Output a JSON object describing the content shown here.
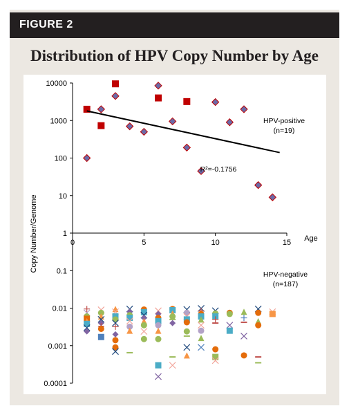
{
  "figure": {
    "label": "FIGURE 2",
    "title": "Distribution of HPV Copy Number by Age"
  },
  "colors": {
    "positive_marker": "#6b6ba8",
    "positive_square": "#c00000",
    "trendline": "#000000",
    "negative_palette": [
      "#e46c0a",
      "#4bacc6",
      "#8064a2",
      "#9bbb59",
      "#f79646",
      "#4f81bd",
      "#c0504d",
      "#1f497d",
      "#b3a2c7",
      "#f2a59a"
    ]
  },
  "chart_data": {
    "type": "scatter",
    "title": "",
    "xlabel": "Age",
    "ylabel": "Copy Number/Genome",
    "xlim": [
      0,
      15
    ],
    "ylim": [
      0.0001,
      10000
    ],
    "yscale": "log",
    "x_ticks": [
      "0",
      "5",
      "10",
      "15"
    ],
    "y_ticks": [
      "10000",
      "1000",
      "100",
      "10",
      "1",
      "0.1",
      "0.01",
      "0.001",
      "0.0001"
    ],
    "grid": false,
    "series": [
      {
        "name": "HPV-positive (n=19)",
        "label": "HPV-positive",
        "n_label": "(n=19)",
        "marker": "diamond",
        "points": [
          {
            "x": 1,
            "y": 100
          },
          {
            "x": 2,
            "y": 2000
          },
          {
            "x": 3,
            "y": 4500
          },
          {
            "x": 4,
            "y": 700
          },
          {
            "x": 5,
            "y": 500
          },
          {
            "x": 6,
            "y": 8500
          },
          {
            "x": 7,
            "y": 950
          },
          {
            "x": 8,
            "y": 190
          },
          {
            "x": 9,
            "y": 45
          },
          {
            "x": 10,
            "y": 3100
          },
          {
            "x": 11,
            "y": 900
          },
          {
            "x": 12,
            "y": 2000
          },
          {
            "x": 13,
            "y": 19
          },
          {
            "x": 14,
            "y": 9
          }
        ],
        "squares": [
          {
            "x": 1,
            "y": 2000
          },
          {
            "x": 2,
            "y": 730
          },
          {
            "x": 3,
            "y": 9500
          },
          {
            "x": 6,
            "y": 4000
          },
          {
            "x": 8,
            "y": 3200
          }
        ],
        "trendline": {
          "x0": 1,
          "y0": 1800,
          "x1": 14.5,
          "y1": 140
        },
        "r2_label": "R²=-0.1756"
      },
      {
        "name": "HPV-negative (n=187)",
        "label": "HPV-negative",
        "n_label": "(n=187)",
        "marker": "mixed",
        "points": [
          {
            "x": 1,
            "y": 0.0095,
            "m": "+",
            "c": 6
          },
          {
            "x": 1,
            "y": 0.0075,
            "m": "x",
            "c": 8
          },
          {
            "x": 1,
            "y": 0.006,
            "m": "o",
            "c": 3
          },
          {
            "x": 1,
            "y": 0.0052,
            "m": "s",
            "c": 0
          },
          {
            "x": 1,
            "y": 0.0045,
            "m": "^",
            "c": 4
          },
          {
            "x": 1,
            "y": 0.0038,
            "m": "s",
            "c": 1
          },
          {
            "x": 1,
            "y": 0.003,
            "m": "x",
            "c": 7
          },
          {
            "x": 1,
            "y": 0.0024,
            "m": "d",
            "c": 2
          },
          {
            "x": 2,
            "y": 0.009,
            "m": "x",
            "c": 9
          },
          {
            "x": 2,
            "y": 0.0075,
            "m": "o",
            "c": 3
          },
          {
            "x": 2,
            "y": 0.006,
            "m": "^",
            "c": 4
          },
          {
            "x": 2,
            "y": 0.005,
            "m": "x",
            "c": 7
          },
          {
            "x": 2,
            "y": 0.004,
            "m": "d",
            "c": 2
          },
          {
            "x": 2,
            "y": 0.0033,
            "m": "+",
            "c": 6
          },
          {
            "x": 2,
            "y": 0.0028,
            "m": "o",
            "c": 0
          },
          {
            "x": 2,
            "y": 0.0017,
            "m": "s",
            "c": 5
          },
          {
            "x": 3,
            "y": 0.0095,
            "m": "^",
            "c": 4
          },
          {
            "x": 3,
            "y": 0.008,
            "m": "x",
            "c": 9
          },
          {
            "x": 3,
            "y": 0.006,
            "m": "s",
            "c": 1
          },
          {
            "x": 3,
            "y": 0.005,
            "m": "o",
            "c": 3
          },
          {
            "x": 3,
            "y": 0.004,
            "m": "x",
            "c": 7
          },
          {
            "x": 3,
            "y": 0.0032,
            "m": "+",
            "c": 6
          },
          {
            "x": 3,
            "y": 0.002,
            "m": "d",
            "c": 2
          },
          {
            "x": 3,
            "y": 0.0014,
            "m": "o",
            "c": 0
          },
          {
            "x": 3,
            "y": 0.0009,
            "m": "o",
            "c": 0
          },
          {
            "x": 3,
            "y": 0.0007,
            "m": "x",
            "c": 7
          },
          {
            "x": 4,
            "y": 0.0095,
            "m": "x",
            "c": 7
          },
          {
            "x": 4,
            "y": 0.008,
            "m": "d",
            "c": 2
          },
          {
            "x": 4,
            "y": 0.0065,
            "m": "o",
            "c": 3
          },
          {
            "x": 4,
            "y": 0.0055,
            "m": "s",
            "c": 1
          },
          {
            "x": 4,
            "y": 0.0045,
            "m": "x",
            "c": 9
          },
          {
            "x": 4,
            "y": 0.0032,
            "m": "o",
            "c": 8
          },
          {
            "x": 4,
            "y": 0.0025,
            "m": "^",
            "c": 4
          },
          {
            "x": 4,
            "y": 0.00065,
            "m": "-",
            "c": 3
          },
          {
            "x": 5,
            "y": 0.0092,
            "m": "o",
            "c": 0
          },
          {
            "x": 5,
            "y": 0.0078,
            "m": "s",
            "c": 1
          },
          {
            "x": 5,
            "y": 0.0065,
            "m": "x",
            "c": 7
          },
          {
            "x": 5,
            "y": 0.0055,
            "m": "d",
            "c": 2
          },
          {
            "x": 5,
            "y": 0.0045,
            "m": "^",
            "c": 4
          },
          {
            "x": 5,
            "y": 0.0035,
            "m": "o",
            "c": 3
          },
          {
            "x": 5,
            "y": 0.0024,
            "m": "x",
            "c": 9
          },
          {
            "x": 5,
            "y": 0.0015,
            "m": "o",
            "c": 3
          },
          {
            "x": 6,
            "y": 0.0085,
            "m": "x",
            "c": 9
          },
          {
            "x": 6,
            "y": 0.007,
            "m": "d",
            "c": 2
          },
          {
            "x": 6,
            "y": 0.0055,
            "m": "o",
            "c": 0
          },
          {
            "x": 6,
            "y": 0.0045,
            "m": "s",
            "c": 1
          },
          {
            "x": 6,
            "y": 0.0035,
            "m": "o",
            "c": 8
          },
          {
            "x": 6,
            "y": 0.0025,
            "m": "^",
            "c": 4
          },
          {
            "x": 6,
            "y": 0.0015,
            "m": "o",
            "c": 3
          },
          {
            "x": 6,
            "y": 0.0003,
            "m": "s",
            "c": 1
          },
          {
            "x": 6,
            "y": 0.00015,
            "m": "x",
            "c": 2
          },
          {
            "x": 7,
            "y": 0.0095,
            "m": "o",
            "c": 0
          },
          {
            "x": 7,
            "y": 0.0088,
            "m": "s",
            "c": 1
          },
          {
            "x": 7,
            "y": 0.0072,
            "m": "^",
            "c": 4
          },
          {
            "x": 7,
            "y": 0.006,
            "m": "o",
            "c": 3
          },
          {
            "x": 7,
            "y": 0.005,
            "m": "-",
            "c": 3
          },
          {
            "x": 7,
            "y": 0.004,
            "m": "d",
            "c": 2
          },
          {
            "x": 7,
            "y": 0.0005,
            "m": "-",
            "c": 3
          },
          {
            "x": 7,
            "y": 0.0003,
            "m": "x",
            "c": 9
          },
          {
            "x": 8,
            "y": 0.0092,
            "m": "x",
            "c": 7
          },
          {
            "x": 8,
            "y": 0.0075,
            "m": "o",
            "c": 8
          },
          {
            "x": 8,
            "y": 0.006,
            "m": "x",
            "c": 9
          },
          {
            "x": 8,
            "y": 0.005,
            "m": "s",
            "c": 1
          },
          {
            "x": 8,
            "y": 0.0042,
            "m": "o",
            "c": 0
          },
          {
            "x": 8,
            "y": 0.0024,
            "m": "o",
            "c": 3
          },
          {
            "x": 8,
            "y": 0.0018,
            "m": "-",
            "c": 3
          },
          {
            "x": 8,
            "y": 0.0009,
            "m": "x",
            "c": 7
          },
          {
            "x": 8,
            "y": 0.00055,
            "m": "^",
            "c": 4
          },
          {
            "x": 9,
            "y": 0.0098,
            "m": "x",
            "c": 7
          },
          {
            "x": 9,
            "y": 0.0085,
            "m": "+",
            "c": 6
          },
          {
            "x": 9,
            "y": 0.007,
            "m": "o",
            "c": 0
          },
          {
            "x": 9,
            "y": 0.006,
            "m": "s",
            "c": 1
          },
          {
            "x": 9,
            "y": 0.005,
            "m": "^",
            "c": 3
          },
          {
            "x": 9,
            "y": 0.0035,
            "m": "x",
            "c": 9
          },
          {
            "x": 9,
            "y": 0.0025,
            "m": "o",
            "c": 8
          },
          {
            "x": 9,
            "y": 0.0016,
            "m": "^",
            "c": 3
          },
          {
            "x": 9,
            "y": 0.0009,
            "m": "x",
            "c": 5
          },
          {
            "x": 10,
            "y": 0.0085,
            "m": "x",
            "c": 7
          },
          {
            "x": 10,
            "y": 0.0072,
            "m": "o",
            "c": 3
          },
          {
            "x": 10,
            "y": 0.006,
            "m": "s",
            "c": 1
          },
          {
            "x": 10,
            "y": 0.005,
            "m": "+",
            "c": 6
          },
          {
            "x": 10,
            "y": 0.004,
            "m": "-",
            "c": 6
          },
          {
            "x": 10,
            "y": 0.0008,
            "m": "o",
            "c": 0
          },
          {
            "x": 10,
            "y": 0.0005,
            "m": "s",
            "c": 3
          },
          {
            "x": 10,
            "y": 0.0004,
            "m": "x",
            "c": 9
          },
          {
            "x": 11,
            "y": 0.0075,
            "m": "o",
            "c": 0
          },
          {
            "x": 11,
            "y": 0.007,
            "m": "o",
            "c": 3
          },
          {
            "x": 11,
            "y": 0.0035,
            "m": "x",
            "c": 2
          },
          {
            "x": 11,
            "y": 0.0025,
            "m": "s",
            "c": 1
          },
          {
            "x": 12,
            "y": 0.008,
            "m": "^",
            "c": 3
          },
          {
            "x": 12,
            "y": 0.0055,
            "m": "+",
            "c": 5
          },
          {
            "x": 12,
            "y": 0.0042,
            "m": "-",
            "c": 6
          },
          {
            "x": 12,
            "y": 0.0018,
            "m": "x",
            "c": 2
          },
          {
            "x": 12,
            "y": 0.00055,
            "m": "o",
            "c": 0
          },
          {
            "x": 13,
            "y": 0.0095,
            "m": "x",
            "c": 7
          },
          {
            "x": 13,
            "y": 0.0075,
            "m": "o",
            "c": 0
          },
          {
            "x": 13,
            "y": 0.0045,
            "m": "^",
            "c": 3
          },
          {
            "x": 13,
            "y": 0.0035,
            "m": "o",
            "c": 0
          },
          {
            "x": 13,
            "y": 0.0005,
            "m": "-",
            "c": 6
          },
          {
            "x": 13,
            "y": 0.00035,
            "m": "-",
            "c": 3
          },
          {
            "x": 14,
            "y": 0.008,
            "m": "x",
            "c": 9
          },
          {
            "x": 14,
            "y": 0.007,
            "m": "s",
            "c": 4
          }
        ]
      }
    ]
  }
}
